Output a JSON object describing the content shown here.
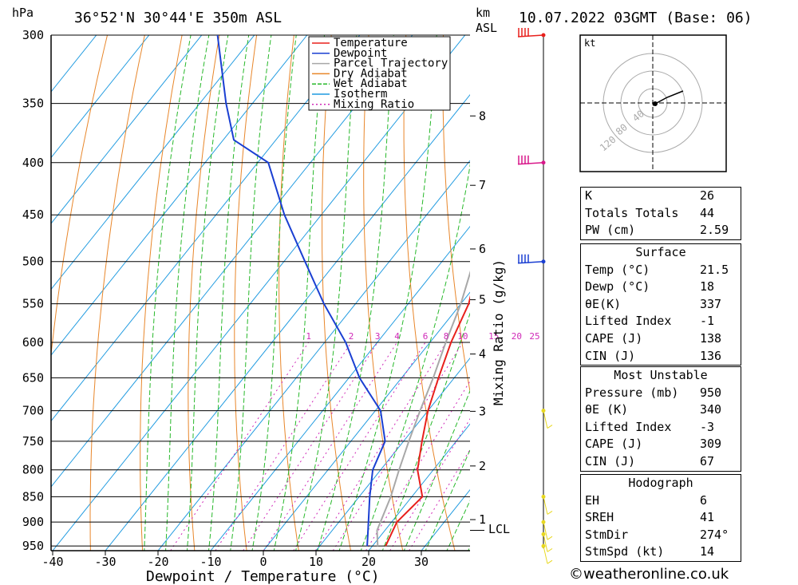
{
  "header": {
    "location": "36°52'N  30°44'E  350m  ASL",
    "datetime": "10.07.2022  03GMT  (Base: 06)",
    "pressure_unit": "hPa",
    "height_unit_top": "km",
    "height_unit_bottom": "ASL"
  },
  "chart_data": {
    "type": "line",
    "title": "36°52'N  30°44'E  350m  ASL",
    "xlabel": "Dewpoint / Temperature (°C)",
    "ylabel": "hPa",
    "y2label": "Mixing Ratio (g/kg)",
    "xlim": [
      -40,
      38
    ],
    "ylim": [
      300,
      960
    ],
    "x_ticks": [
      -40,
      -30,
      -20,
      -10,
      0,
      10,
      20,
      30
    ],
    "p_ticks": [
      300,
      350,
      400,
      450,
      500,
      550,
      600,
      650,
      700,
      750,
      800,
      850,
      900,
      950
    ],
    "km_ticks": [
      {
        "label": "8",
        "p": 360
      },
      {
        "label": "7",
        "p": 421
      },
      {
        "label": "6",
        "p": 486
      },
      {
        "label": "5",
        "p": 545
      },
      {
        "label": "4",
        "p": 616
      },
      {
        "label": "3",
        "p": 701
      },
      {
        "label": "2",
        "p": 793
      },
      {
        "label": "1",
        "p": 895
      }
    ],
    "lcl_label": "LCL",
    "lcl_p": 917,
    "mixing_ratio_labels": [
      "1",
      "2",
      "3",
      "4",
      "6",
      "8",
      "10",
      "15",
      "20",
      "25"
    ],
    "legend": [
      {
        "label": "Temperature",
        "color": "#e8201c"
      },
      {
        "label": "Dewpoint",
        "color": "#1a3fd2"
      },
      {
        "label": "Parcel Trajectory",
        "color": "#a8a8a8"
      },
      {
        "label": "Dry Adiabat",
        "color": "#e8862a"
      },
      {
        "label": "Wet Adiabat",
        "color": "#27b82a"
      },
      {
        "label": "Isotherm",
        "color": "#1e9ae0"
      },
      {
        "label": "Mixing Ratio",
        "color": "#d02ab8"
      }
    ],
    "legend_position": "top-right",
    "series": [
      {
        "name": "Temperature",
        "color": "#e8201c",
        "points": [
          [
            22.5,
            950
          ],
          [
            21,
            900
          ],
          [
            22,
            850
          ],
          [
            17,
            800
          ],
          [
            13.5,
            750
          ],
          [
            10,
            700
          ],
          [
            7,
            650
          ],
          [
            4,
            600
          ],
          [
            1.5,
            550
          ],
          [
            -3,
            500
          ],
          [
            -4.5,
            450
          ],
          [
            -6,
            400
          ],
          [
            -11,
            350
          ]
        ]
      },
      {
        "name": "Dewpoint",
        "color": "#1a3fd2",
        "points": [
          [
            19,
            950
          ],
          [
            17,
            920
          ],
          [
            12,
            850
          ],
          [
            8.5,
            800
          ],
          [
            6.5,
            750
          ],
          [
            1,
            700
          ],
          [
            -8,
            650
          ],
          [
            -16,
            600
          ],
          [
            -26,
            550
          ],
          [
            -36,
            500
          ],
          [
            -47,
            450
          ],
          [
            -58,
            400
          ],
          [
            -68,
            380
          ],
          [
            -75,
            350
          ],
          [
            -87,
            300
          ]
        ]
      },
      {
        "name": "Parcel Trajectory",
        "color": "#a8a8a8",
        "points": [
          [
            21,
            950
          ],
          [
            18.5,
            917
          ],
          [
            16,
            850
          ],
          [
            13.5,
            800
          ],
          [
            11,
            750
          ],
          [
            8.5,
            700
          ],
          [
            6,
            650
          ],
          [
            3,
            600
          ],
          [
            0,
            550
          ],
          [
            -4,
            500
          ],
          [
            -8.5,
            450
          ],
          [
            -14,
            400
          ],
          [
            -21,
            350
          ],
          [
            -29,
            300
          ]
        ]
      }
    ],
    "wind_barbs": [
      {
        "p": 300,
        "color": "#e8201c"
      },
      {
        "p": 400,
        "color": "#d8188a"
      },
      {
        "p": 500,
        "color": "#1a3fd2"
      },
      {
        "p": 700,
        "color": "#e8d820"
      },
      {
        "p": 850,
        "color": "#e8d820"
      },
      {
        "p": 900,
        "color": "#e8d820"
      },
      {
        "p": 925,
        "color": "#e8d820"
      },
      {
        "p": 950,
        "color": "#e8d820"
      }
    ]
  },
  "hodograph": {
    "unit": "kt",
    "ring_labels": [
      "40",
      "80",
      "120"
    ]
  },
  "indices": {
    "top": [
      {
        "label": "K",
        "value": "26"
      },
      {
        "label": "Totals Totals",
        "value": "44"
      },
      {
        "label": "PW (cm)",
        "value": "2.59"
      }
    ],
    "surface": {
      "title": "Surface",
      "rows": [
        {
          "label": "Temp (°C)",
          "value": "21.5"
        },
        {
          "label": "Dewp (°C)",
          "value": "18"
        },
        {
          "label": "θE(K)",
          "value": "337"
        },
        {
          "label": "Lifted Index",
          "value": "-1"
        },
        {
          "label": "CAPE (J)",
          "value": "138"
        },
        {
          "label": "CIN (J)",
          "value": "136"
        }
      ]
    },
    "most_unstable": {
      "title": "Most Unstable",
      "rows": [
        {
          "label": "Pressure (mb)",
          "value": "950"
        },
        {
          "label": "θE (K)",
          "value": "340"
        },
        {
          "label": "Lifted Index",
          "value": "-3"
        },
        {
          "label": "CAPE (J)",
          "value": "309"
        },
        {
          "label": "CIN (J)",
          "value": "67"
        }
      ]
    },
    "hodograph_box": {
      "title": "Hodograph",
      "rows": [
        {
          "label": "EH",
          "value": "6"
        },
        {
          "label": "SREH",
          "value": "41"
        },
        {
          "label": "StmDir",
          "value": "274°"
        },
        {
          "label": "StmSpd (kt)",
          "value": "14"
        }
      ]
    }
  },
  "footer": "©weatheronline.co.uk"
}
